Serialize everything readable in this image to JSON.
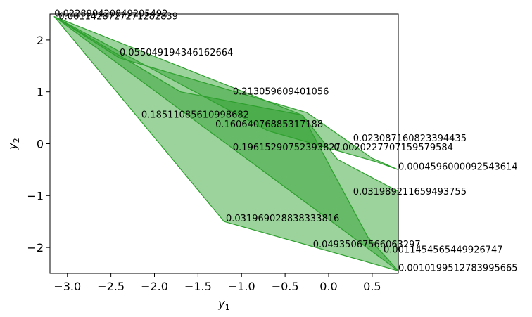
{
  "chart_data": {
    "type": "area",
    "xlabel_base": "y",
    "xlabel_sub": "1",
    "ylabel_base": "y",
    "ylabel_sub": "2",
    "xlim": [
      -3.2,
      0.8
    ],
    "ylim": [
      -2.5,
      2.5
    ],
    "xticks": [
      -3.0,
      -2.5,
      -2.0,
      -1.5,
      -1.0,
      -0.5,
      0.0,
      0.5
    ],
    "xtick_labels": [
      "−3.0",
      "−2.5",
      "−2.0",
      "−1.5",
      "−1.0",
      "−0.5",
      "0.0",
      "0.5"
    ],
    "yticks": [
      2,
      1,
      0,
      -1,
      -2
    ],
    "ytick_labels": [
      "2",
      "1",
      "0",
      "−1",
      "−2"
    ],
    "grid": false,
    "colors": {
      "fill": "#2ca02c",
      "edge": "#2ca02c"
    },
    "polygons": [
      {
        "opacity": 0.47,
        "points": [
          [
            -3.15,
            2.45
          ],
          [
            0.8,
            -2.45
          ],
          [
            0.8,
            -0.92
          ],
          [
            0.1,
            -0.3
          ],
          [
            -0.3,
            0.55
          ],
          [
            -1.7,
            1.0
          ],
          [
            -3.15,
            2.45
          ]
        ]
      },
      {
        "opacity": 0.47,
        "points": [
          [
            -3.15,
            2.45
          ],
          [
            -1.2,
            -1.5
          ],
          [
            0.8,
            -2.45
          ],
          [
            0.45,
            -1.8
          ],
          [
            -0.3,
            0.55
          ],
          [
            -3.15,
            2.45
          ]
        ]
      },
      {
        "opacity": 0.47,
        "points": [
          [
            -3.15,
            2.45
          ],
          [
            -0.7,
            0.25
          ],
          [
            0.55,
            -0.35
          ],
          [
            0.8,
            -0.5
          ],
          [
            0.5,
            -0.28
          ],
          [
            -0.25,
            0.6
          ],
          [
            -2.4,
            1.65
          ],
          [
            -3.15,
            2.45
          ]
        ]
      }
    ],
    "annotations": [
      {
        "text": "0.022890420849205492",
        "x": -3.15,
        "y": 2.45
      },
      {
        "text": "0.0011428727271282839",
        "x": -3.1,
        "y": 2.4
      },
      {
        "text": "0.055049194346162664",
        "x": -2.4,
        "y": 1.7
      },
      {
        "text": "0.213059609401056",
        "x": -1.1,
        "y": 0.95
      },
      {
        "text": "0.18511085610998682",
        "x": -2.15,
        "y": 0.5
      },
      {
        "text": "0.16064076885317188",
        "x": -1.3,
        "y": 0.32
      },
      {
        "text": "0.023087160823394435",
        "x": 0.28,
        "y": 0.05
      },
      {
        "text": "0.19615290752393827",
        "x": -1.1,
        "y": -0.13
      },
      {
        "text": "0.0020227707159579584",
        "x": 0.06,
        "y": -0.13
      },
      {
        "text": "0.0004596000092543614",
        "x": 0.8,
        "y": -0.5
      },
      {
        "text": "0.031989211659493755",
        "x": 0.28,
        "y": -0.98
      },
      {
        "text": "0.031969028838333816",
        "x": -1.18,
        "y": -1.5
      },
      {
        "text": "0.04935067566063297",
        "x": -0.18,
        "y": -2.0
      },
      {
        "text": "0.0011454565449926747",
        "x": 0.63,
        "y": -2.1
      },
      {
        "text": "0.0010199512783995665",
        "x": 0.8,
        "y": -2.45
      }
    ]
  }
}
